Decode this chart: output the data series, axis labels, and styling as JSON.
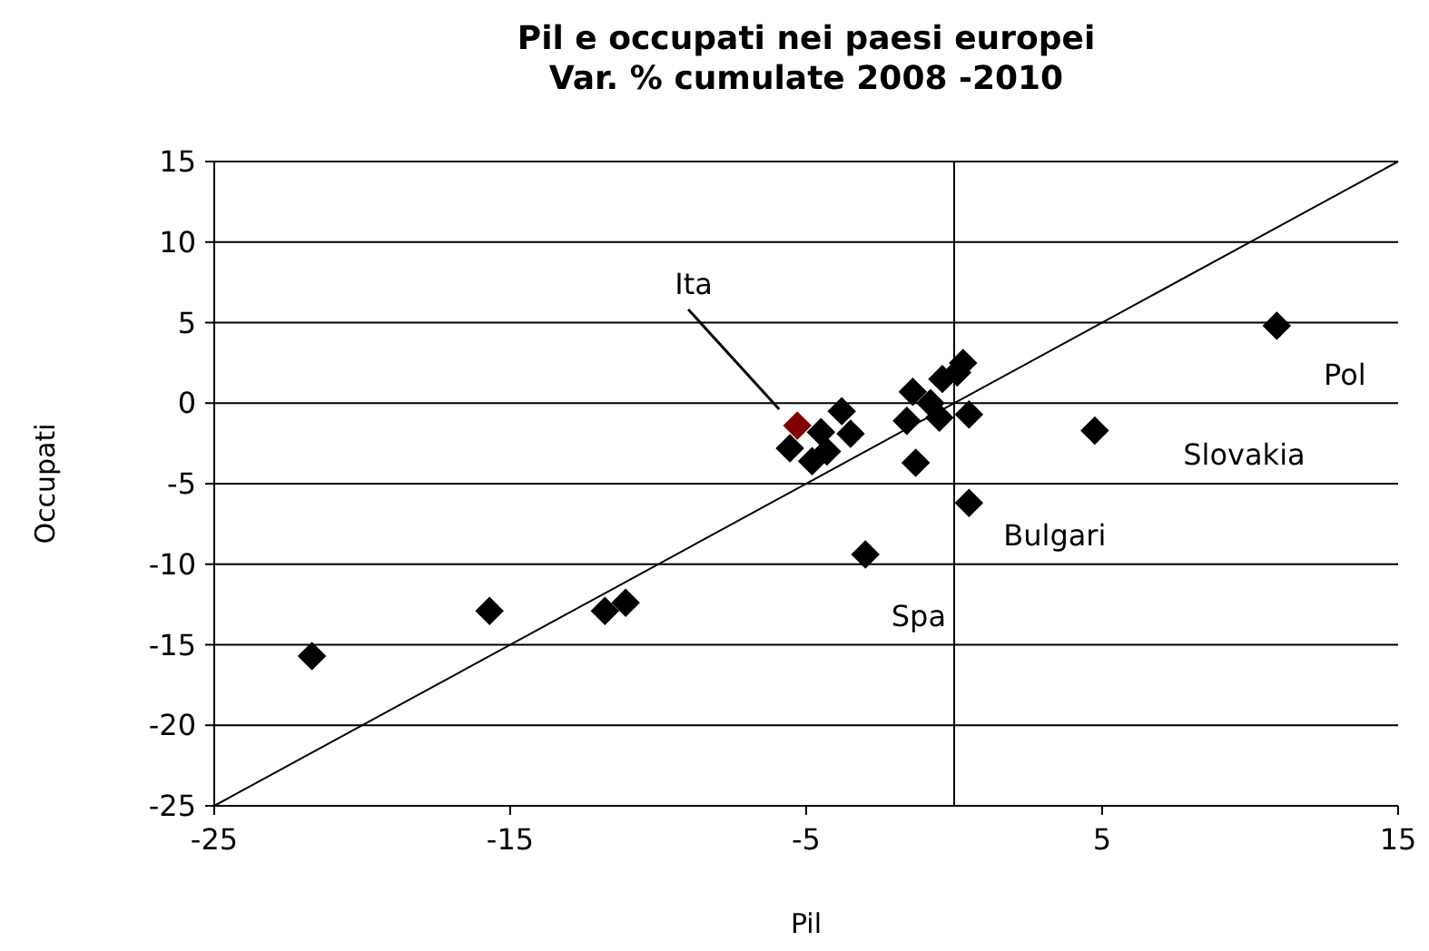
{
  "chart_data": {
    "type": "scatter",
    "title": "Pil e occupati nei paesi europei\nVar. % cumulate 2008 -2010",
    "xlabel": "Pil",
    "ylabel": "Occupati",
    "xlim": [
      -25,
      15
    ],
    "xticks": [
      -25,
      -15,
      -5,
      5,
      15
    ],
    "ylim": [
      -25,
      15
    ],
    "yticks": [
      -25,
      -20,
      -15,
      -10,
      -5,
      0,
      5,
      10,
      15
    ],
    "grid": "y",
    "marker": "diamond",
    "series": [
      {
        "color": "#000000",
        "x": [
          -21.7,
          -15.7,
          -11.8,
          -11.1,
          -5.55,
          -4.8,
          -4.5,
          -4.3,
          -3.8,
          -3.5,
          -3.0,
          -1.6,
          -1.4,
          -1.3,
          -0.8,
          -0.5,
          -0.4,
          0.1,
          0.3,
          0.5,
          0.5,
          4.75,
          10.9
        ],
        "values": [
          -15.7,
          -12.9,
          -12.9,
          -12.4,
          -2.8,
          -3.6,
          -1.8,
          -3.0,
          -0.5,
          -1.9,
          -9.4,
          -1.1,
          0.7,
          -3.7,
          0.0,
          -0.9,
          1.5,
          1.9,
          2.5,
          -0.7,
          -6.2,
          -1.7,
          4.8
        ]
      },
      {
        "color": "#800000",
        "x": [
          -5.3
        ],
        "values": [
          -1.4
        ]
      },
      {
        "type": "line",
        "color": "#000000",
        "marker": "none",
        "x": [
          -25,
          15
        ],
        "values": [
          -25,
          15
        ]
      }
    ],
    "ref_lines": [
      {
        "axis": "x",
        "value": 0,
        "color": "#000000"
      }
    ],
    "annotations": [
      "Ita",
      "Pol",
      "Slovakia",
      "Bulgari",
      "Spa"
    ]
  }
}
